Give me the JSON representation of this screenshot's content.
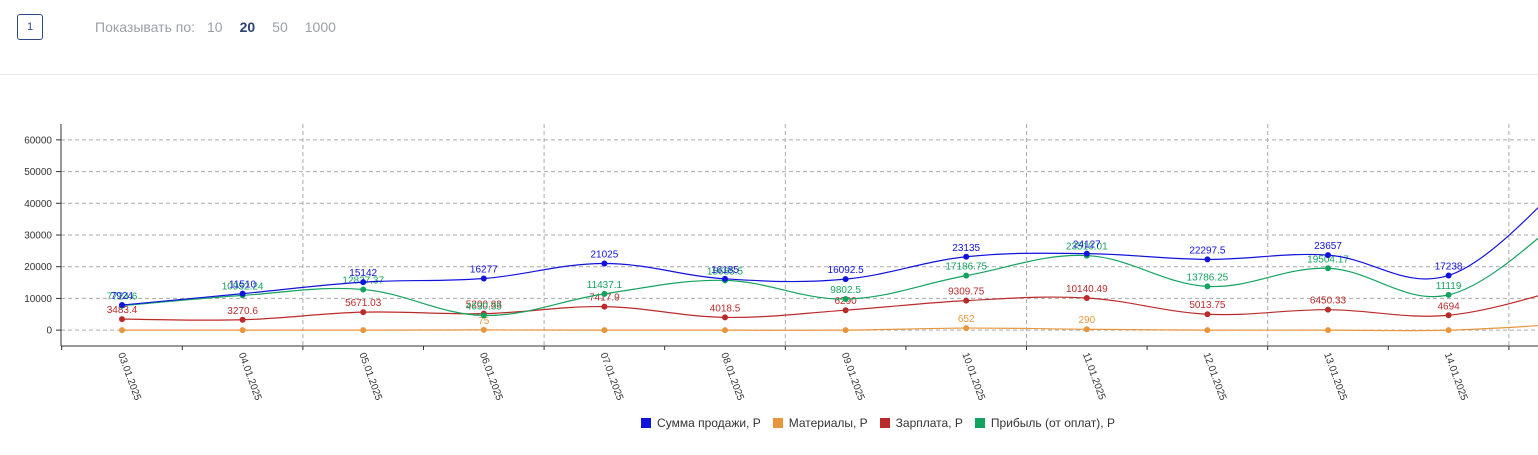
{
  "pagination": {
    "current_page": "1"
  },
  "per_page": {
    "label": "Показывать по:",
    "options": [
      "10",
      "20",
      "50",
      "1000"
    ],
    "selected": "20"
  },
  "colors": {
    "sales": "#1212dd",
    "materials": "#e8963c",
    "salary": "#bb2a2a",
    "profit": "#14a35f",
    "grid": "#aaaaaa",
    "axis": "#333333"
  },
  "chart_data": {
    "type": "line",
    "smooth": true,
    "grid": true,
    "legend_position": "bottom-center",
    "x": [
      "03.01.2025",
      "04.01.2025",
      "05.01.2025",
      "06.01.2025",
      "07.01.2025",
      "08.01.2025",
      "09.01.2025",
      "10.01.2025",
      "11.01.2025",
      "12.01.2025",
      "13.01.2025",
      "14.01.2025",
      ""
    ],
    "ylim": [
      -5000,
      65000
    ],
    "yticks": [
      0,
      10000,
      20000,
      30000,
      40000,
      50000,
      60000
    ],
    "series": [
      {
        "key": "sales",
        "name": "Сумма продажи, Р",
        "values": [
          7924,
          11510,
          15142,
          16277,
          21025,
          16185,
          16092.5,
          23135,
          24127,
          22297.5,
          23657,
          17238,
          48000
        ],
        "labels": [
          "7924",
          "11510",
          "15142",
          "16277",
          "21025",
          "16185",
          "16092.5",
          "23135",
          "24127",
          "22297.5",
          "23657",
          "17238",
          ""
        ]
      },
      {
        "key": "materials",
        "name": "Материалы, Р",
        "values": [
          0,
          0,
          0,
          75,
          0,
          0,
          0,
          652,
          290,
          0,
          0,
          0,
          2000
        ],
        "labels": [
          "",
          "",
          "",
          "75",
          "",
          "",
          "",
          "652",
          "290",
          "",
          "",
          "",
          ""
        ]
      },
      {
        "key": "salary",
        "name": "Зарплата, Р",
        "values": [
          3483.4,
          3270.6,
          5671.03,
          5200.83,
          7417.9,
          4018.5,
          6290,
          9309.75,
          10140.49,
          5013.75,
          6450.33,
          4694,
          13500
        ],
        "labels": [
          "3483.4",
          "3270.6",
          "5671.03",
          "5200.83",
          "7417.9",
          "4018.5",
          "6290",
          "9309.75",
          "10140.49",
          "5013.75",
          "6450.33",
          "4694",
          ""
        ]
      },
      {
        "key": "profit",
        "name": "Прибыль (от оплат), Р",
        "values": [
          7724.6,
          10952.24,
          12827.37,
          4630.35,
          11437.1,
          15685.5,
          9802.5,
          17186.75,
          23510.01,
          13786.25,
          19504.17,
          11119,
          37000
        ],
        "labels": [
          "7724.6",
          "10952.24",
          "12827.37",
          "4630.35",
          "11437.1",
          "15685.5",
          "9802.5",
          "17186.75",
          "23510.01",
          "13786.25",
          "19504.17",
          "11119",
          ""
        ]
      }
    ]
  }
}
